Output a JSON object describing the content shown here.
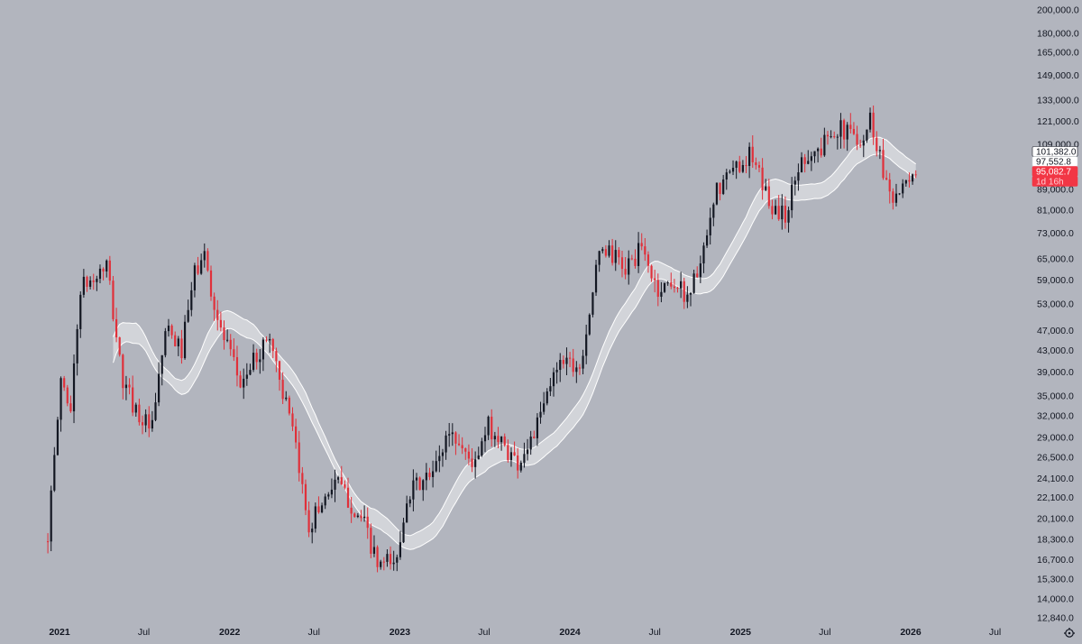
{
  "chart_data": {
    "type": "candlestick",
    "interval": "1W",
    "y_scale": "log",
    "ylim": [
      12000,
      205000
    ],
    "x_start": "2020-12-07",
    "x_end": "2026-08-10",
    "background_color": "#b2b5be",
    "up_color": "#131722",
    "down_color": "#e0303a",
    "band_color": "#ffffff",
    "x_ticks": [
      {
        "label": "2021",
        "date": "2021-01-01",
        "bold": true
      },
      {
        "label": "Jul",
        "date": "2021-07-01",
        "bold": false
      },
      {
        "label": "2022",
        "date": "2022-01-01",
        "bold": true
      },
      {
        "label": "Jul",
        "date": "2022-07-01",
        "bold": false
      },
      {
        "label": "2023",
        "date": "2023-01-01",
        "bold": true
      },
      {
        "label": "Jul",
        "date": "2023-07-01",
        "bold": false
      },
      {
        "label": "2024",
        "date": "2024-01-01",
        "bold": true
      },
      {
        "label": "Jul",
        "date": "2024-07-01",
        "bold": false
      },
      {
        "label": "2025",
        "date": "2025-01-01",
        "bold": true
      },
      {
        "label": "Jul",
        "date": "2025-07-01",
        "bold": false
      },
      {
        "label": "2026",
        "date": "2026-01-01",
        "bold": true
      },
      {
        "label": "Jul",
        "date": "2026-07-01",
        "bold": false
      }
    ],
    "y_ticks": [
      {
        "label": "200,000.0",
        "value": 200000
      },
      {
        "label": "180,000.0",
        "value": 180000
      },
      {
        "label": "165,000.0",
        "value": 165000
      },
      {
        "label": "149,000.0",
        "value": 149000
      },
      {
        "label": "133,000.0",
        "value": 133000
      },
      {
        "label": "121,000.0",
        "value": 121000
      },
      {
        "label": "109,000.0",
        "value": 109000
      },
      {
        "label": "89,000.0",
        "value": 89000
      },
      {
        "label": "81,000.0",
        "value": 81000
      },
      {
        "label": "73,000.0",
        "value": 73000
      },
      {
        "label": "65,000.0",
        "value": 65000
      },
      {
        "label": "59,000.0",
        "value": 59000
      },
      {
        "label": "53,000.0",
        "value": 53000
      },
      {
        "label": "47,000.0",
        "value": 47000
      },
      {
        "label": "43,000.0",
        "value": 43000
      },
      {
        "label": "39,000.0",
        "value": 39000
      },
      {
        "label": "35,000.0",
        "value": 35000
      },
      {
        "label": "32,000.0",
        "value": 32000
      },
      {
        "label": "29,000.0",
        "value": 29000
      },
      {
        "label": "26,500.0",
        "value": 26500
      },
      {
        "label": "24,100.0",
        "value": 24100
      },
      {
        "label": "22,100.0",
        "value": 22100
      },
      {
        "label": "20,100.0",
        "value": 20100
      },
      {
        "label": "18,300.0",
        "value": 18300
      },
      {
        "label": "16,700.0",
        "value": 16700
      },
      {
        "label": "15,300.0",
        "value": 15300
      },
      {
        "label": "14,000.0",
        "value": 14000
      },
      {
        "label": "12,840.0",
        "value": 12840
      }
    ],
    "price_tags": [
      {
        "label": "101,382.0",
        "value": 101382,
        "bg": "#ffffff",
        "fg": "#131722",
        "border": "#131722"
      },
      {
        "label": "97,552.8",
        "value": 97552.8,
        "bg": "#ffffff",
        "fg": "#131722",
        "border": "#d0d3da"
      },
      {
        "label": "95,082.7",
        "value": 95082.7,
        "bg": "#f23645",
        "fg": "#ffffff",
        "border": "#f23645"
      },
      {
        "label": "1d 16h",
        "value": null,
        "bg": "#f23645",
        "fg": "#ffcdd2",
        "border": "#f23645"
      }
    ],
    "settings_icon": "gear-icon",
    "waypoints": [
      [
        "2020-12-07",
        18900
      ],
      [
        "2020-12-21",
        26000
      ],
      [
        "2021-01-04",
        38000
      ],
      [
        "2021-01-25",
        33000
      ],
      [
        "2021-02-15",
        57000
      ],
      [
        "2021-03-15",
        59000
      ],
      [
        "2021-04-12",
        63000
      ],
      [
        "2021-05-17",
        37000
      ],
      [
        "2021-06-21",
        32000
      ],
      [
        "2021-07-19",
        30000
      ],
      [
        "2021-08-16",
        47000
      ],
      [
        "2021-09-20",
        43000
      ],
      [
        "2021-10-18",
        61000
      ],
      [
        "2021-11-08",
        66000
      ],
      [
        "2021-12-06",
        49000
      ],
      [
        "2022-01-24",
        37000
      ],
      [
        "2022-03-28",
        46000
      ],
      [
        "2022-05-16",
        29500
      ],
      [
        "2022-06-20",
        19500
      ],
      [
        "2022-08-15",
        24000
      ],
      [
        "2022-10-17",
        19500
      ],
      [
        "2022-11-14",
        16200
      ],
      [
        "2022-12-26",
        16600
      ],
      [
        "2023-01-16",
        22500
      ],
      [
        "2023-03-13",
        24500
      ],
      [
        "2023-04-17",
        30000
      ],
      [
        "2023-06-12",
        25500
      ],
      [
        "2023-07-10",
        30500
      ],
      [
        "2023-09-11",
        25800
      ],
      [
        "2023-10-23",
        30500
      ],
      [
        "2023-12-11",
        42000
      ],
      [
        "2024-01-22",
        40000
      ],
      [
        "2024-02-26",
        61000
      ],
      [
        "2024-03-11",
        69000
      ],
      [
        "2024-04-29",
        62000
      ],
      [
        "2024-06-03",
        68000
      ],
      [
        "2024-07-08",
        56000
      ],
      [
        "2024-08-05",
        59000
      ],
      [
        "2024-09-09",
        55000
      ],
      [
        "2024-10-14",
        66000
      ],
      [
        "2024-11-11",
        88000
      ],
      [
        "2024-12-16",
        97000
      ],
      [
        "2025-01-20",
        104000
      ],
      [
        "2025-03-10",
        82000
      ],
      [
        "2025-04-07",
        79000
      ],
      [
        "2025-05-12",
        103000
      ],
      [
        "2025-06-23",
        106000
      ],
      [
        "2025-07-14",
        118000
      ],
      [
        "2025-08-18",
        115000
      ],
      [
        "2025-09-22",
        112000
      ],
      [
        "2025-10-06",
        123000
      ],
      [
        "2025-11-10",
        92000
      ],
      [
        "2025-11-24",
        87000
      ],
      [
        "2025-12-29",
        90000
      ],
      [
        "2026-01-12",
        95082.7
      ]
    ]
  }
}
